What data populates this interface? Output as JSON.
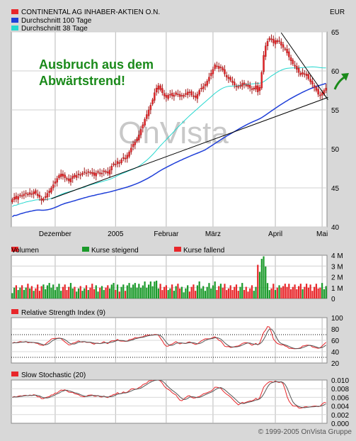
{
  "currency": "EUR",
  "legend": [
    {
      "label": "CONTINENTAL AG INHABER-AKTIEN O.N.",
      "color": "#e8262a"
    },
    {
      "label": "Durchschnitt 100 Tage",
      "color": "#1f3fd8"
    },
    {
      "label": "Durchschnitt 38 Tage",
      "color": "#25d8cf"
    }
  ],
  "annotation": {
    "line1": "Ausbruch aus dem",
    "line2": "Abwärtstrend!",
    "color": "#1a8a1a"
  },
  "watermark": "OnVista",
  "copyright": "© 1999-2005 OnVista Gruppe",
  "chart_data": [
    {
      "type": "candlestick",
      "name": "price",
      "ylim": [
        40,
        65
      ],
      "yticks": [
        40,
        45,
        50,
        55,
        60,
        65
      ],
      "x_ticks": [
        "Dezember",
        "2005",
        "Februar",
        "März",
        "April",
        "Mai"
      ],
      "x_tick_pos": [
        22,
        53,
        79,
        103,
        135,
        159
      ],
      "n_days": 162,
      "close": [
        43.5,
        43.8,
        43.6,
        43.9,
        44.1,
        44.0,
        44.2,
        44.3,
        44.1,
        44.4,
        44.2,
        44.5,
        44.3,
        44.0,
        43.8,
        43.4,
        43.6,
        43.9,
        44.3,
        44.6,
        45.0,
        45.4,
        45.8,
        46.2,
        46.6,
        46.8,
        46.5,
        46.3,
        46.1,
        45.9,
        46.2,
        46.5,
        46.4,
        46.6,
        46.8,
        46.7,
        46.9,
        47.0,
        46.9,
        47.1,
        47.0,
        46.8,
        46.6,
        46.9,
        47.1,
        46.8,
        46.9,
        47.2,
        47.0,
        46.9,
        47.3,
        47.8,
        48.1,
        48.0,
        48.4,
        48.2,
        48.6,
        48.9,
        48.7,
        49.2,
        49.6,
        50.1,
        50.6,
        50.9,
        51.3,
        51.8,
        52.5,
        53.1,
        53.8,
        54.4,
        55.0,
        55.6,
        56.3,
        57.2,
        57.8,
        58.1,
        57.6,
        57.2,
        56.8,
        56.6,
        56.9,
        57.0,
        56.8,
        56.9,
        57.2,
        57.0,
        56.7,
        56.8,
        56.9,
        57.1,
        57.3,
        57.2,
        56.9,
        56.7,
        56.6,
        57.0,
        57.5,
        57.8,
        58.0,
        58.3,
        58.7,
        59.2,
        59.7,
        60.2,
        60.8,
        60.6,
        60.3,
        60.5,
        60.1,
        59.6,
        59.2,
        59.0,
        58.8,
        58.5,
        58.2,
        58.0,
        57.9,
        58.1,
        58.4,
        58.3,
        58.2,
        58.0,
        57.8,
        57.6,
        57.8,
        58.1,
        57.3,
        57.9,
        59.8,
        62.0,
        63.2,
        63.8,
        64.2,
        64.0,
        63.6,
        63.9,
        63.7,
        63.8,
        63.3,
        63.0,
        62.8,
        62.3,
        61.8,
        61.3,
        60.9,
        60.6,
        60.2,
        59.8,
        59.5,
        59.8,
        59.6,
        59.4,
        59.0,
        58.6,
        58.3,
        57.9,
        57.5,
        57.0,
        56.8,
        57.2,
        57.5,
        57.8
      ],
      "annotation_lines": [
        {
          "x1": 20,
          "y1": 43.6,
          "x2": 162,
          "y2": 56.6
        },
        {
          "x1": 138,
          "y1": 64.9,
          "x2": 162,
          "y2": 56.3
        }
      ]
    },
    {
      "type": "bar",
      "name": "Volumen",
      "title": "Volumen",
      "ylim": [
        0,
        4
      ],
      "yticks": [
        "0",
        "1 M",
        "2 M",
        "3 M",
        "4 M"
      ],
      "legend": [
        {
          "label": "Kurse steigend",
          "color": "#1a9a2a"
        },
        {
          "label": "Kurse fallend",
          "color": "#e8262a"
        }
      ]
    },
    {
      "type": "line",
      "name": "RSI",
      "title": "Relative Strength Index (9)",
      "ylim": [
        20,
        100
      ],
      "yticks": [
        "20",
        "40",
        "60",
        "80",
        "100"
      ],
      "ref_lines": [
        30,
        70
      ],
      "smooth": 5,
      "scale": 4.5,
      "offset": 0
    },
    {
      "type": "line",
      "name": "Stochastic",
      "title": "Slow Stochastic (20)",
      "ylim": [
        0,
        0.01
      ],
      "yticks": [
        "0.000",
        "0.002",
        "0.004",
        "0.006",
        "0.008",
        "0.010"
      ],
      "smooth": 12,
      "scale": 0.0006,
      "offset": 0.006
    }
  ]
}
